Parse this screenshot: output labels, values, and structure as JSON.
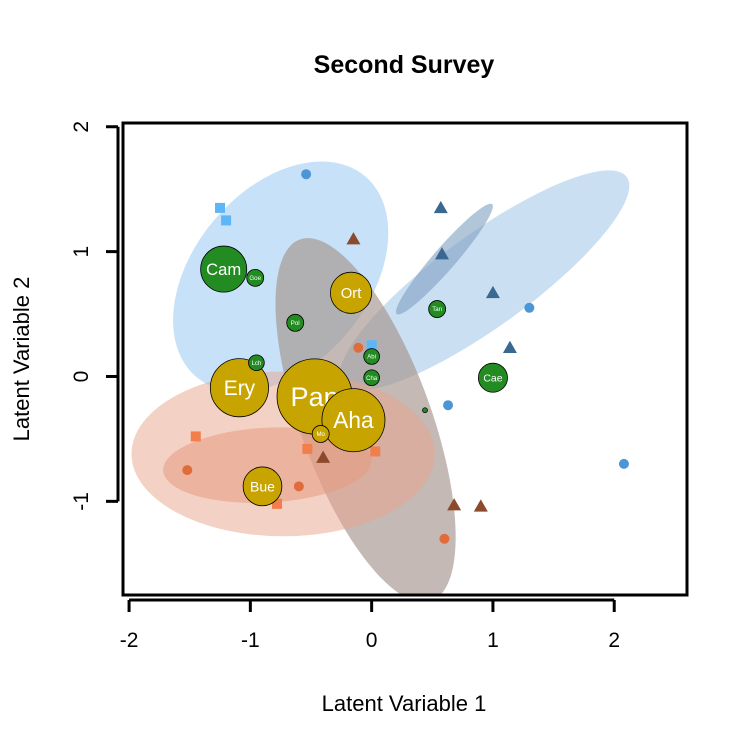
{
  "chart_data": {
    "type": "scatter",
    "title": "Second Survey",
    "xlabel": "Latent Variable 1",
    "ylabel": "Latent Variable 2",
    "xlim": [
      -2.05,
      2.6
    ],
    "ylim": [
      -1.75,
      2.03
    ],
    "xticks": [
      "-2",
      "-1",
      "0",
      "1",
      "2"
    ],
    "xtick_values": [
      -2,
      -1,
      0,
      1,
      2
    ],
    "yticks": [
      "-1",
      "0",
      "1",
      "2"
    ],
    "ytick_values": [
      -1,
      0,
      1,
      2
    ],
    "grid": false,
    "legend": "none",
    "ellipses": [
      {
        "cx": -0.75,
        "cy": 0.8,
        "rx": 0.72,
        "ry": 1.05,
        "angle": -40,
        "color": "#bcdcf7",
        "opacity": 0.85
      },
      {
        "cx": 0.93,
        "cy": 0.77,
        "rx": 1.45,
        "ry": 0.37,
        "angle": 36,
        "color": "#b5d1ec",
        "opacity": 0.7
      },
      {
        "cx": 0.6,
        "cy": 0.94,
        "rx": 0.6,
        "ry": 0.09,
        "angle": 49,
        "color": "#7fa0c2",
        "opacity": 0.6
      },
      {
        "cx": -0.05,
        "cy": -0.35,
        "rx": 0.54,
        "ry": 1.54,
        "angle": 20,
        "color": "#a5948c",
        "opacity": 0.65
      },
      {
        "cx": -0.73,
        "cy": -0.62,
        "rx": 1.25,
        "ry": 0.66,
        "angle": 0,
        "color": "#e9a48b",
        "opacity": 0.5
      },
      {
        "cx": -0.86,
        "cy": -0.71,
        "rx": 0.86,
        "ry": 0.3,
        "angle": 3,
        "color": "#e59b80",
        "opacity": 0.55
      }
    ],
    "point_groups": [
      {
        "shape": "circle",
        "color": "#4d96d6",
        "points": [
          [
            -0.54,
            1.62
          ],
          [
            1.3,
            0.55
          ],
          [
            0.63,
            -0.23
          ],
          [
            2.08,
            -0.7
          ]
        ]
      },
      {
        "shape": "square",
        "color": "#5cb6f7",
        "points": [
          [
            -1.25,
            1.35
          ],
          [
            -1.2,
            1.25
          ],
          [
            0.0,
            0.25
          ]
        ]
      },
      {
        "shape": "triangle",
        "color": "#3b6891",
        "points": [
          [
            0.57,
            1.35
          ],
          [
            0.58,
            0.98
          ],
          [
            1.0,
            0.67
          ],
          [
            1.14,
            0.23
          ]
        ]
      },
      {
        "shape": "triangle",
        "color": "#8b4a2b",
        "points": [
          [
            -0.15,
            1.1
          ],
          [
            -0.4,
            -0.65
          ],
          [
            0.68,
            -1.03
          ],
          [
            0.9,
            -1.04
          ]
        ]
      },
      {
        "shape": "circle",
        "color": "#e06c3c",
        "points": [
          [
            -0.11,
            0.23
          ],
          [
            -1.52,
            -0.75
          ],
          [
            -0.6,
            -0.88
          ],
          [
            0.6,
            -1.3
          ]
        ]
      },
      {
        "shape": "square",
        "color": "#f27e4c",
        "points": [
          [
            -1.45,
            -0.48
          ],
          [
            -0.53,
            -0.58
          ],
          [
            0.03,
            -0.6
          ],
          [
            -0.78,
            -1.02
          ]
        ]
      }
    ],
    "species": [
      {
        "label": "Cam",
        "x": -1.22,
        "y": 0.86,
        "r": 0.19,
        "color": "#228b22"
      },
      {
        "label": "Goe",
        "x": -0.96,
        "y": 0.79,
        "r": 0.07,
        "color": "#228b22"
      },
      {
        "label": "Pol",
        "x": -0.63,
        "y": 0.43,
        "r": 0.07,
        "color": "#228b22"
      },
      {
        "label": "Tan",
        "x": 0.54,
        "y": 0.54,
        "r": 0.07,
        "color": "#228b22"
      },
      {
        "label": "Abi",
        "x": 0.0,
        "y": 0.16,
        "r": 0.065,
        "color": "#228b22"
      },
      {
        "label": "Lch",
        "x": -0.95,
        "y": 0.11,
        "r": 0.065,
        "color": "#228b22"
      },
      {
        "label": "Cha",
        "x": 0.0,
        "y": -0.01,
        "r": 0.065,
        "color": "#228b22"
      },
      {
        "label": "Cae",
        "x": 1.0,
        "y": -0.01,
        "r": 0.12,
        "color": "#228b22"
      },
      {
        "label": "",
        "x": 0.44,
        "y": -0.27,
        "r": 0.02,
        "color": "#228b22"
      },
      {
        "label": "Ort",
        "x": -0.17,
        "y": 0.67,
        "r": 0.17,
        "color": "#c8a400"
      },
      {
        "label": "Ery",
        "x": -1.09,
        "y": -0.09,
        "r": 0.24,
        "color": "#c8a400"
      },
      {
        "label": "Pan",
        "x": -0.47,
        "y": -0.16,
        "r": 0.31,
        "color": "#c8a400"
      },
      {
        "label": "Aha",
        "x": -0.15,
        "y": -0.35,
        "r": 0.26,
        "color": "#c8a400"
      },
      {
        "label": "Bue",
        "x": -0.9,
        "y": -0.88,
        "r": 0.16,
        "color": "#c8a400"
      },
      {
        "label": "Mo",
        "x": -0.42,
        "y": -0.46,
        "r": 0.07,
        "color": "#c8a400"
      }
    ]
  }
}
